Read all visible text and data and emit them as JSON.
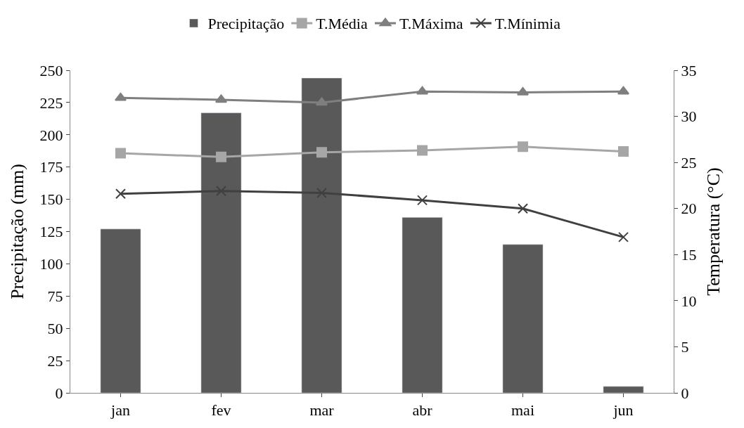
{
  "chart_data": {
    "type": "bar",
    "categories": [
      "jan",
      "fev",
      "mar",
      "abr",
      "mai",
      "jun"
    ],
    "ylabel": "Precipitação (mm)",
    "y2label": "Temperatura (°C)",
    "ylim": [
      0,
      250
    ],
    "yticks": [
      0,
      25,
      50,
      75,
      100,
      125,
      150,
      175,
      200,
      225,
      250
    ],
    "y2lim": [
      0,
      35
    ],
    "y2ticks": [
      0,
      5,
      10,
      15,
      20,
      25,
      30,
      35
    ],
    "legend": "top",
    "series": [
      {
        "name": "Precipitação",
        "color": "#595959",
        "values": [
          127,
          217,
          244,
          136,
          115,
          5
        ]
      },
      {
        "name": "T.Média",
        "type": "line",
        "axis": "y2",
        "marker": "square",
        "color": "#a6a6a6",
        "values": [
          26.0,
          25.6,
          26.1,
          26.3,
          26.7,
          26.2
        ]
      },
      {
        "name": "T.Máxima",
        "type": "line",
        "axis": "y2",
        "marker": "triangle",
        "color": "#7f7f7f",
        "values": [
          32.0,
          31.8,
          31.5,
          32.7,
          32.6,
          32.7
        ]
      },
      {
        "name": "T.Mínimia",
        "type": "line",
        "axis": "y2",
        "marker": "cross",
        "color": "#404040",
        "values": [
          21.6,
          21.9,
          21.7,
          20.9,
          20.0,
          16.9
        ]
      }
    ]
  }
}
